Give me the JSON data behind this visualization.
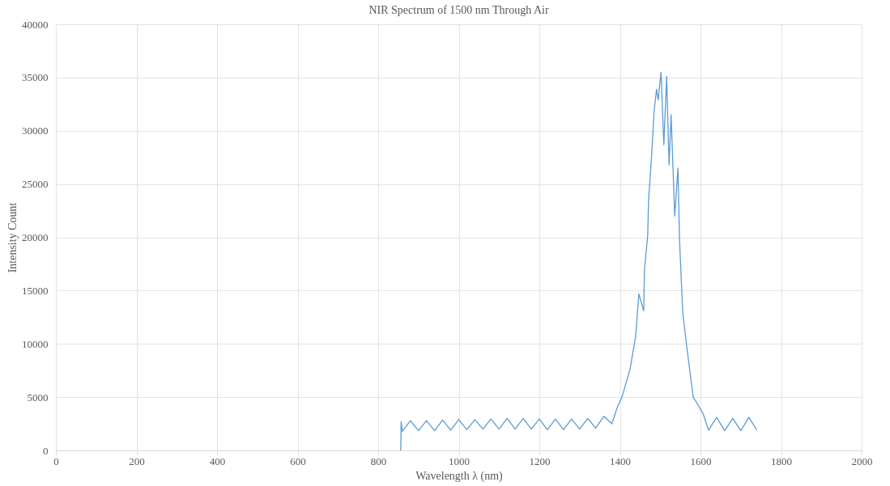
{
  "chart_data": {
    "type": "line",
    "title": "NIR Spectrum of 1500 nm Through Air",
    "xlabel": "Wavelength λ (nm)",
    "ylabel": "Intensity Count",
    "xlim": [
      0,
      2000
    ],
    "xticks": [
      0,
      200,
      400,
      600,
      800,
      1000,
      1200,
      1400,
      1600,
      1800,
      2000
    ],
    "ylim": [
      0,
      40000
    ],
    "yticks": [
      0,
      5000,
      10000,
      15000,
      20000,
      25000,
      30000,
      35000,
      40000
    ],
    "grid": true,
    "marker": "none",
    "line_style": "solid",
    "series": [
      {
        "color": "#5b9bd5",
        "x": [
          856,
          857,
          860,
          880,
          900,
          920,
          940,
          960,
          980,
          1000,
          1020,
          1040,
          1060,
          1080,
          1100,
          1120,
          1140,
          1160,
          1180,
          1200,
          1220,
          1240,
          1260,
          1280,
          1300,
          1320,
          1340,
          1360,
          1380,
          1395,
          1405,
          1425,
          1439,
          1447,
          1459,
          1461,
          1469,
          1471,
          1479,
          1485,
          1491,
          1495,
          1502,
          1509,
          1516,
          1522,
          1527,
          1536,
          1544,
          1548,
          1556,
          1566,
          1582,
          1592,
          1607,
          1620,
          1640,
          1660,
          1680,
          1700,
          1720,
          1740
        ],
        "values": [
          0,
          2700,
          1800,
          2800,
          1850,
          2800,
          1850,
          2850,
          1900,
          2900,
          1950,
          2900,
          2000,
          2950,
          2000,
          3000,
          2000,
          3000,
          2000,
          2950,
          1950,
          2950,
          1950,
          2950,
          2000,
          3000,
          2100,
          3200,
          2500,
          4200,
          5000,
          7600,
          10700,
          14700,
          13100,
          17000,
          20200,
          23400,
          27900,
          31900,
          33900,
          32900,
          35500,
          28700,
          35100,
          26800,
          31500,
          22000,
          26500,
          19700,
          12900,
          9700,
          5000,
          4400,
          3400,
          1900,
          3100,
          1850,
          3000,
          1850,
          3100,
          1900
        ]
      }
    ]
  }
}
